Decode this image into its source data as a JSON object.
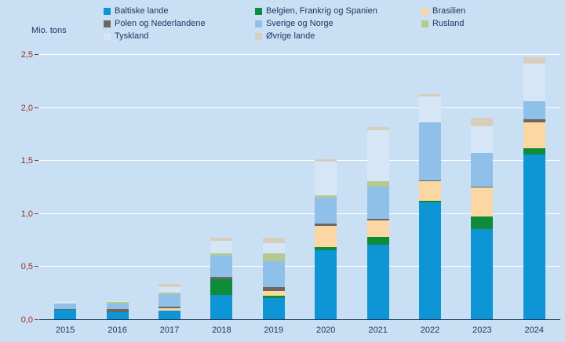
{
  "colors": {
    "background": "#c9e0f4",
    "axis_text": "#17375e",
    "y_tick_text": "#9b2c20",
    "gridline": "#ffffff"
  },
  "chart_data": {
    "type": "bar",
    "stacked": true,
    "unit_label": "Mio. tons",
    "legend_position": "top",
    "grid": "horizontal-white-lines",
    "categories": [
      "2015",
      "2016",
      "2017",
      "2018",
      "2019",
      "2020",
      "2021",
      "2022",
      "2023",
      "2024"
    ],
    "series": [
      {
        "name": "Baltiske lande",
        "color": "#0d95d5",
        "values": [
          0.09,
          0.07,
          0.08,
          0.23,
          0.2,
          0.65,
          0.7,
          1.1,
          0.85,
          1.55
        ]
      },
      {
        "name": "Belgien, Frankrig og Spanien",
        "color": "#0e8c3a",
        "values": [
          0.0,
          0.0,
          0.0,
          0.15,
          0.02,
          0.03,
          0.08,
          0.02,
          0.12,
          0.06
        ]
      },
      {
        "name": "Brasilien",
        "color": "#fbd7a3",
        "values": [
          0.0,
          0.0,
          0.02,
          0.0,
          0.05,
          0.2,
          0.15,
          0.18,
          0.27,
          0.25
        ]
      },
      {
        "name": "Polen og Nederlandene",
        "color": "#6e675e",
        "values": [
          0.01,
          0.03,
          0.02,
          0.02,
          0.03,
          0.02,
          0.02,
          0.01,
          0.01,
          0.03
        ]
      },
      {
        "name": "Sverige og Norge",
        "color": "#8fc0e9",
        "values": [
          0.05,
          0.05,
          0.12,
          0.2,
          0.25,
          0.25,
          0.3,
          0.55,
          0.32,
          0.17
        ]
      },
      {
        "name": "Rusland",
        "color": "#b3cb8f",
        "values": [
          0.0,
          0.01,
          0.01,
          0.02,
          0.07,
          0.02,
          0.05,
          0.0,
          0.0,
          0.0
        ]
      },
      {
        "name": "Tyskland",
        "color": "#d7e6f6",
        "values": [
          0.02,
          0.01,
          0.05,
          0.12,
          0.1,
          0.32,
          0.48,
          0.24,
          0.25,
          0.35
        ]
      },
      {
        "name": "Øvrige lande",
        "color": "#d8cebe",
        "values": [
          0.0,
          0.0,
          0.03,
          0.03,
          0.05,
          0.02,
          0.03,
          0.02,
          0.08,
          0.06
        ]
      }
    ],
    "ylim": [
      0,
      2.5
    ],
    "y_ticks": [
      0,
      0.5,
      1.0,
      1.5,
      2.0,
      2.5
    ],
    "y_tick_labels": [
      "0,0",
      "0,5",
      "1,0",
      "1,5",
      "2,0",
      "2,5"
    ]
  }
}
